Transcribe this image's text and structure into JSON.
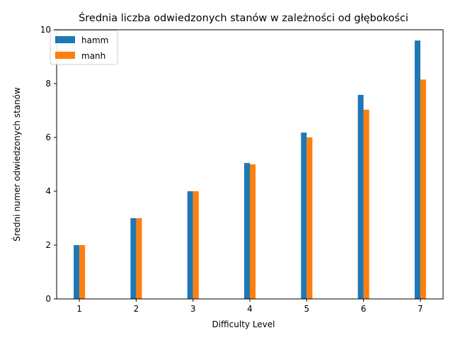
{
  "chart_data": {
    "type": "bar",
    "title": "Średnia liczba odwiedzonych stanów w zależności od głębokości",
    "xlabel": "Difficulty Level",
    "ylabel": "Średni numer odwiedzonych stanów",
    "categories": [
      "1",
      "2",
      "3",
      "4",
      "5",
      "6",
      "7"
    ],
    "x": [
      1,
      2,
      3,
      4,
      5,
      6,
      7
    ],
    "ylim": [
      0,
      10
    ],
    "xlim": [
      0.6,
      7.4
    ],
    "yticks": [
      0,
      2,
      4,
      6,
      8,
      10
    ],
    "grid": false,
    "legend_position": "top-left",
    "series": [
      {
        "name": "hamm",
        "color": "#1f77b4",
        "values": [
          2.0,
          3.0,
          4.0,
          5.05,
          6.18,
          7.58,
          9.6
        ]
      },
      {
        "name": "manh",
        "color": "#ff7f0e",
        "values": [
          2.0,
          3.0,
          4.0,
          5.0,
          6.0,
          7.03,
          8.15
        ]
      }
    ]
  }
}
